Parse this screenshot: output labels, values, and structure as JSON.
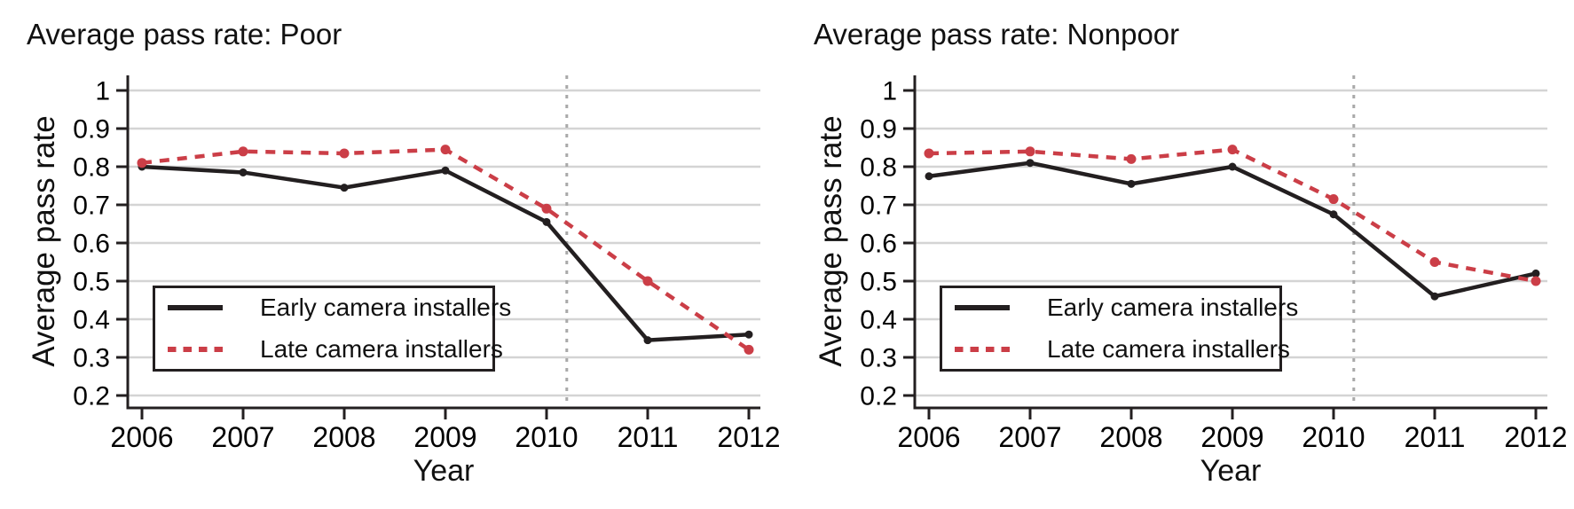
{
  "colors": {
    "early_series": "#231f20",
    "late_series": "#cb3e47",
    "grid": "#d4d4d4",
    "axis": "#231f20",
    "text": "#000000",
    "reference_line": "#a9a9a9",
    "background": "#ffffff"
  },
  "chart_data": [
    {
      "type": "line",
      "title": "Average pass rate: Poor",
      "xlabel": "Year",
      "ylabel": "Average pass rate",
      "x": [
        2006,
        2007,
        2008,
        2009,
        2010,
        2011,
        2012
      ],
      "yticks": [
        1,
        0.9,
        0.8,
        0.7,
        0.6,
        0.5,
        0.4,
        0.3,
        0.2
      ],
      "ylim": [
        0.2,
        1.0
      ],
      "grid": true,
      "legend_position": "lower-left-inside",
      "reference_line_x": 2010.2,
      "series": [
        {
          "name": "Early camera installers",
          "style": "solid",
          "color": "#231f20",
          "values": [
            0.8,
            0.785,
            0.745,
            0.79,
            0.655,
            0.345,
            0.36
          ]
        },
        {
          "name": "Late camera installers",
          "style": "dashed",
          "color": "#cb3e47",
          "values": [
            0.81,
            0.84,
            0.835,
            0.845,
            0.69,
            0.5,
            0.32
          ]
        }
      ]
    },
    {
      "type": "line",
      "title": "Average pass rate: Nonpoor",
      "xlabel": "Year",
      "ylabel": "Average pass rate",
      "x": [
        2006,
        2007,
        2008,
        2009,
        2010,
        2011,
        2012
      ],
      "yticks": [
        1,
        0.9,
        0.8,
        0.7,
        0.6,
        0.5,
        0.4,
        0.3,
        0.2
      ],
      "ylim": [
        0.2,
        1.0
      ],
      "grid": true,
      "legend_position": "lower-left-inside",
      "reference_line_x": 2010.2,
      "series": [
        {
          "name": "Early camera installers",
          "style": "solid",
          "color": "#231f20",
          "values": [
            0.775,
            0.81,
            0.755,
            0.8,
            0.675,
            0.46,
            0.52
          ]
        },
        {
          "name": "Late camera installers",
          "style": "dashed",
          "color": "#cb3e47",
          "values": [
            0.835,
            0.84,
            0.82,
            0.845,
            0.715,
            0.55,
            0.5
          ]
        }
      ]
    }
  ]
}
